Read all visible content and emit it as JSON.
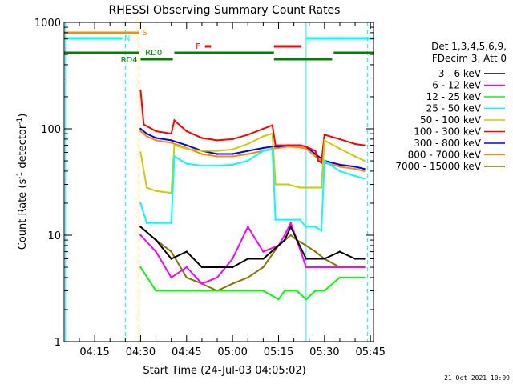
{
  "chart_data": {
    "type": "line",
    "title": "RHESSI Observing Summary Count Rates",
    "xlabel": "Start Time (24-Jul-03 04:05:02)",
    "ylabel": "Count Rate (s⁻¹ detector⁻¹)",
    "ylabel_main": "Count Rate (s",
    "ylabel_exp1": "-1",
    "ylabel_mid": " detector",
    "ylabel_exp2": "-1",
    "ylabel_end": ")",
    "footer_date": "21-Oct-2021 10:09",
    "y_scale": "log",
    "xlim": [
      "04:05:02",
      "05:46:00"
    ],
    "ylim": [
      1,
      1000
    ],
    "x_ticks": [
      "04:15",
      "04:30",
      "04:45",
      "05:00",
      "05:15",
      "05:30",
      "05:45"
    ],
    "y_ticks": [
      {
        "value": 1,
        "label": "1"
      },
      {
        "value": 10,
        "label": "10"
      },
      {
        "value": 100,
        "label": "100"
      },
      {
        "value": 1000,
        "label": "1000"
      }
    ],
    "legend": {
      "header_line1": "Det 1,3,4,5,6,9,",
      "header_line2": "FDecim 3, Att 0",
      "placement": "right"
    },
    "series": [
      {
        "name": "3 - 6 keV",
        "color": "#000000",
        "x": [
          "04:30",
          "04:35",
          "04:40",
          "04:45",
          "04:50",
          "04:55",
          "05:00",
          "05:05",
          "05:10",
          "05:15",
          "05:17",
          "05:19",
          "05:21",
          "05:24",
          "05:27",
          "05:30",
          "05:35",
          "05:40",
          "05:43"
        ],
        "y": [
          12,
          9,
          6,
          7,
          5,
          5,
          5,
          6,
          6,
          8,
          9,
          12,
          9,
          6,
          6,
          6,
          7,
          6,
          6
        ]
      },
      {
        "name": "6 - 12 keV",
        "color": "#ff00ff",
        "x": [
          "04:30",
          "04:35",
          "04:40",
          "04:45",
          "04:50",
          "04:55",
          "05:00",
          "05:05",
          "05:10",
          "05:15",
          "05:17",
          "05:19",
          "05:21",
          "05:24",
          "05:27",
          "05:30",
          "05:35",
          "05:40",
          "05:43"
        ],
        "y": [
          10,
          7,
          4,
          5,
          3.5,
          4,
          6,
          12,
          7,
          8,
          10,
          13,
          9,
          5,
          5,
          5,
          5,
          5,
          5
        ]
      },
      {
        "name": "12 - 25 keV",
        "color": "#00ff00",
        "x": [
          "04:30",
          "04:35",
          "04:40",
          "04:45",
          "04:50",
          "04:55",
          "05:00",
          "05:05",
          "05:10",
          "05:15",
          "05:17",
          "05:19",
          "05:21",
          "05:24",
          "05:27",
          "05:30",
          "05:35",
          "05:40",
          "05:43"
        ],
        "y": [
          5,
          3,
          3,
          3,
          3,
          3,
          3,
          3,
          3,
          2.5,
          3,
          3,
          3,
          2.5,
          3,
          3,
          4,
          4,
          4
        ]
      },
      {
        "name": "25 - 50 keV",
        "color": "#00ffff",
        "x": [
          "04:30",
          "04:32",
          "04:35",
          "04:40",
          "04:41",
          "04:45",
          "04:50",
          "04:55",
          "05:00",
          "05:05",
          "05:10",
          "05:13",
          "05:14",
          "05:18",
          "05:22",
          "05:24",
          "05:27",
          "05:29",
          "05:30",
          "05:35",
          "05:40",
          "05:43"
        ],
        "y": [
          20,
          13,
          13,
          13,
          55,
          47,
          45,
          45,
          46,
          50,
          62,
          64,
          14,
          14,
          14,
          12,
          12,
          11,
          50,
          40,
          36,
          34
        ]
      },
      {
        "name": "50 - 100 keV",
        "color": "#cccc00",
        "x": [
          "04:30",
          "04:32",
          "04:35",
          "04:40",
          "04:41",
          "04:45",
          "04:50",
          "04:55",
          "05:00",
          "05:05",
          "05:10",
          "05:13",
          "05:14",
          "05:18",
          "05:22",
          "05:24",
          "05:27",
          "05:29",
          "05:30",
          "05:35",
          "05:40",
          "05:43"
        ],
        "y": [
          60,
          28,
          26,
          25,
          70,
          65,
          62,
          62,
          64,
          72,
          85,
          90,
          30,
          30,
          28,
          28,
          28,
          28,
          78,
          65,
          55,
          50
        ]
      },
      {
        "name": "100 - 300 keV",
        "color": "#ff0000",
        "x": [
          "04:30",
          "04:31",
          "04:35",
          "04:40",
          "04:41",
          "04:45",
          "04:50",
          "04:55",
          "05:00",
          "05:05",
          "05:10",
          "05:13",
          "05:14",
          "05:18",
          "05:22",
          "05:24",
          "05:27",
          "05:28",
          "05:29",
          "05:30",
          "05:35",
          "05:40",
          "05:43"
        ],
        "y": [
          230,
          110,
          95,
          90,
          120,
          95,
          82,
          78,
          80,
          88,
          100,
          108,
          70,
          70,
          70,
          68,
          62,
          50,
          48,
          88,
          80,
          72,
          70
        ]
      },
      {
        "name": "300 - 800 keV",
        "color": "#0000ff",
        "x": [
          "04:30",
          "04:32",
          "04:35",
          "04:40",
          "04:45",
          "04:50",
          "04:55",
          "05:00",
          "05:05",
          "05:10",
          "05:13",
          "05:15",
          "05:18",
          "05:22",
          "05:24",
          "05:27",
          "05:30",
          "05:35",
          "05:40",
          "05:43"
        ],
        "y": [
          100,
          90,
          82,
          78,
          70,
          62,
          58,
          58,
          62,
          66,
          68,
          68,
          70,
          70,
          68,
          58,
          50,
          46,
          44,
          42
        ]
      },
      {
        "name": "800 - 7000 keV",
        "color": "#ff8c00",
        "x": [
          "04:30",
          "04:32",
          "04:35",
          "04:40",
          "04:45",
          "04:50",
          "04:55",
          "05:00",
          "05:05",
          "05:10",
          "05:13",
          "05:15",
          "05:18",
          "05:22",
          "05:24",
          "05:27",
          "05:30",
          "05:35",
          "05:40",
          "05:43"
        ],
        "y": [
          95,
          85,
          78,
          74,
          66,
          58,
          55,
          55,
          58,
          62,
          65,
          66,
          68,
          67,
          65,
          55,
          48,
          44,
          42,
          40
        ]
      },
      {
        "name": "7000 - 15000 keV",
        "color": "#8b7300",
        "x": [
          "04:30",
          "04:35",
          "04:40",
          "04:45",
          "04:50",
          "04:55",
          "05:00",
          "05:05",
          "05:10",
          "05:15",
          "05:19",
          "05:21",
          "05:24",
          "05:27",
          "05:30",
          "05:35",
          "05:40",
          "05:43"
        ],
        "y": [
          12,
          9,
          7,
          4,
          3.5,
          3,
          3.5,
          4,
          5,
          8,
          10,
          9,
          8,
          7,
          6,
          5,
          5,
          5
        ]
      }
    ],
    "flag_bars": [
      {
        "label": "S",
        "color": "#ff8c00",
        "start": "04:05:02",
        "end": "04:29:30"
      },
      {
        "label": "N",
        "color": "#00ffff",
        "start": "04:05:02",
        "end": "04:24:00"
      },
      {
        "label": "F",
        "color": "#ff0000",
        "start": "04:51:00",
        "end": "04:53:00"
      },
      {
        "label": "",
        "color": "#ff0000",
        "start": "05:13:30",
        "end": "05:22:30"
      },
      {
        "label": "",
        "color": "#00ffff",
        "start": "05:24:00",
        "end": "05:46:00"
      },
      {
        "label": "RD0",
        "color": "#008000",
        "start": "04:05:02",
        "end": "04:29:30"
      },
      {
        "label": "",
        "color": "#008000",
        "start": "04:41:00",
        "end": "05:13:30"
      },
      {
        "label": "",
        "color": "#008000",
        "start": "05:33:00",
        "end": "05:46:00"
      },
      {
        "label": "RD4",
        "color": "#008000",
        "start": "04:30:00",
        "end": "04:40:30"
      },
      {
        "label": "",
        "color": "#008000",
        "start": "05:13:30",
        "end": "05:32:30"
      }
    ],
    "flag_labels_above": [
      {
        "text": "S",
        "color": "#ff8c00",
        "at": "04:30:30"
      },
      {
        "text": "N",
        "color": "#00ffff",
        "at": "04:24:40"
      },
      {
        "text": "F",
        "color": "#ff0000",
        "at": "04:48:00"
      },
      {
        "text": "RD0",
        "color": "#008000",
        "at": "04:31:30"
      },
      {
        "text": "RD4",
        "color": "#008000",
        "at": "04:23:30"
      }
    ],
    "vlines": [
      {
        "at": "04:05:30",
        "color": "#00ffff",
        "style": "solid"
      },
      {
        "at": "04:25:00",
        "color": "#00ffff",
        "style": "dashed"
      },
      {
        "at": "04:29:30",
        "color": "#ff8c00",
        "style": "dashed"
      },
      {
        "at": "05:24:00",
        "color": "#00ffff",
        "style": "solid"
      },
      {
        "at": "05:44:00",
        "color": "#00ffff",
        "style": "dashed"
      }
    ],
    "grid": false
  }
}
